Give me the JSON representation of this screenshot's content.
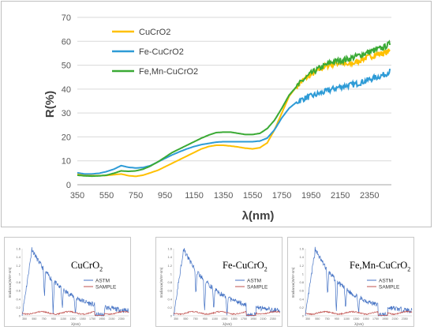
{
  "chart_data": [
    {
      "type": "line",
      "title": "",
      "xlabel": "λ(nm)",
      "ylabel": "R(%)",
      "xlim": [
        350,
        2500
      ],
      "ylim": [
        0,
        70
      ],
      "xticks": [
        350,
        550,
        750,
        950,
        1150,
        1350,
        1550,
        1750,
        1950,
        2150,
        2350
      ],
      "yticks": [
        0,
        10,
        20,
        30,
        40,
        50,
        60,
        70
      ],
      "grid": "horizontal",
      "legend_position": "top-left",
      "x": [
        350,
        400,
        450,
        500,
        550,
        600,
        650,
        700,
        750,
        800,
        850,
        900,
        950,
        1000,
        1050,
        1100,
        1150,
        1200,
        1250,
        1300,
        1350,
        1400,
        1450,
        1500,
        1550,
        1600,
        1650,
        1700,
        1750,
        1800,
        1850,
        1900,
        1950,
        2000,
        2050,
        2100,
        2150,
        2200,
        2250,
        2300,
        2350,
        2400,
        2450,
        2490
      ],
      "series": [
        {
          "name": "CuCrO2",
          "color": "#FFC000",
          "values": [
            4.5,
            4.0,
            3.8,
            3.8,
            3.9,
            4.2,
            4.5,
            3.8,
            3.5,
            4.0,
            5.0,
            6.0,
            7.5,
            9.0,
            10.5,
            12.0,
            13.5,
            15.0,
            16.0,
            16.5,
            16.5,
            16.2,
            15.8,
            15.3,
            15.0,
            15.5,
            17.5,
            23.0,
            30.0,
            37.0,
            41.0,
            44.0,
            46.0,
            48.0,
            49.5,
            50.5,
            51.0,
            50.0,
            51.0,
            52.5,
            53.5,
            54.5,
            55.0,
            56.0
          ]
        },
        {
          "name": "Fe-CuCrO2",
          "color": "#2E9BD6",
          "values": [
            5.0,
            4.5,
            4.5,
            4.8,
            5.5,
            6.5,
            8.0,
            7.3,
            7.0,
            7.2,
            8.0,
            9.5,
            11.0,
            12.5,
            13.8,
            15.0,
            16.0,
            16.8,
            17.3,
            17.8,
            18.0,
            18.0,
            18.0,
            18.0,
            18.0,
            18.3,
            19.5,
            23.0,
            28.0,
            32.0,
            34.5,
            36.0,
            37.0,
            38.0,
            39.0,
            40.0,
            41.0,
            41.5,
            42.0,
            43.0,
            44.0,
            45.0,
            46.0,
            47.5
          ]
        },
        {
          "name": "Fe,Mn-CuCrO2",
          "color": "#3BAA35",
          "values": [
            4.0,
            3.7,
            3.6,
            3.7,
            4.0,
            4.8,
            5.8,
            5.6,
            5.8,
            6.5,
            7.8,
            9.5,
            11.5,
            13.5,
            15.0,
            16.5,
            18.0,
            19.5,
            20.8,
            21.8,
            22.0,
            22.0,
            21.5,
            21.0,
            21.0,
            21.5,
            23.5,
            27.0,
            32.0,
            37.5,
            41.0,
            44.0,
            46.5,
            48.5,
            50.0,
            51.5,
            52.0,
            52.5,
            53.5,
            54.5,
            55.5,
            56.5,
            57.5,
            59.0
          ]
        }
      ]
    },
    {
      "type": "line",
      "title": "CuCrO",
      "title_sub": "2",
      "ylabel": "Irradiance(W/m²·nm)",
      "xlabel": "λ(nm)",
      "xticks": [
        "350",
        "550",
        "750",
        "950",
        "1150",
        "1350",
        "1550",
        "1750",
        "1950",
        "2150",
        "2350"
      ],
      "yticks": [
        "0",
        "0.2",
        "0.4",
        "0.6",
        "0.8",
        "1",
        "1.2",
        "1.4",
        "1.6"
      ],
      "series": [
        {
          "name": "ASTM",
          "color": "#4472C4"
        },
        {
          "name": "SAMPLE",
          "color": "#C0504D"
        }
      ]
    },
    {
      "type": "line",
      "title": "Fe-CuCrO",
      "title_sub": "2",
      "ylabel": "Irradiance(W/m²·nm)",
      "xlabel": "λ(nm)",
      "xticks": [
        "350",
        "550",
        "750",
        "950",
        "1150",
        "1350",
        "1550",
        "1750",
        "1950",
        "2150",
        "2350"
      ],
      "yticks": [
        "0",
        "0.2",
        "0.4",
        "0.6",
        "0.8",
        "1",
        "1.2",
        "1.4",
        "1.6"
      ],
      "series": [
        {
          "name": "ASTM",
          "color": "#4472C4"
        },
        {
          "name": "SAMPLE",
          "color": "#C0504D"
        }
      ]
    },
    {
      "type": "line",
      "title": "Fe,Mn-CuCrO",
      "title_sub": "2",
      "ylabel": "Irradiance(W/m²·nm)",
      "xlabel": "λ(nm)",
      "xticks": [
        "350",
        "550",
        "750",
        "950",
        "1150",
        "1350",
        "1550",
        "1750",
        "1950",
        "2150",
        "2350"
      ],
      "yticks": [
        "0",
        "0.2",
        "0.4",
        "0.6",
        "0.8",
        "1",
        "1.2",
        "1.4",
        "1.6"
      ],
      "series": [
        {
          "name": "ASTM",
          "color": "#4472C4"
        },
        {
          "name": "SAMPLE",
          "color": "#C0504D"
        }
      ]
    }
  ]
}
